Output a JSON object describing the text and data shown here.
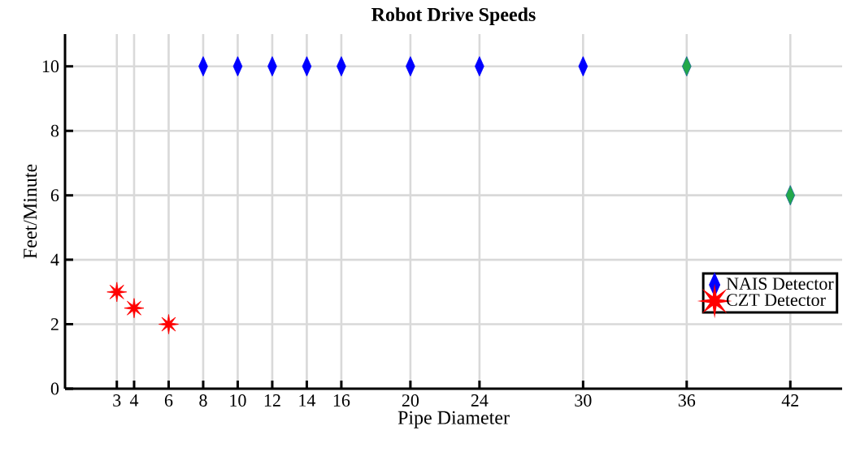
{
  "chart_data": {
    "type": "scatter",
    "title": "Robot Drive Speeds",
    "xlabel": "Pipe Diameter",
    "ylabel": "Feet/Minute",
    "xlim": [
      0,
      45
    ],
    "ylim": [
      0,
      11
    ],
    "xticks": [
      3,
      4,
      6,
      8,
      10,
      12,
      14,
      16,
      20,
      24,
      30,
      36,
      42
    ],
    "yticks": [
      0,
      2,
      4,
      6,
      8,
      10
    ],
    "grid": true,
    "legend": "right",
    "series": [
      {
        "name": "NAIS Detector",
        "marker": "diamond",
        "color": "#0000ff",
        "x": [
          8,
          10,
          12,
          14,
          16,
          20,
          24,
          30,
          36,
          42
        ],
        "values": [
          10,
          10,
          10,
          10,
          10,
          10,
          10,
          10,
          10,
          6
        ],
        "colors": [
          "#0000ff",
          "#0000ff",
          "#0000ff",
          "#0000ff",
          "#0000ff",
          "#0000ff",
          "#0000ff",
          "#0000ff",
          "#22a84a",
          "#22a84a"
        ]
      },
      {
        "name": "CZT Detector",
        "marker": "star",
        "color": "#ff0000",
        "x": [
          3,
          4,
          6
        ],
        "values": [
          3,
          2.5,
          2
        ]
      }
    ]
  }
}
